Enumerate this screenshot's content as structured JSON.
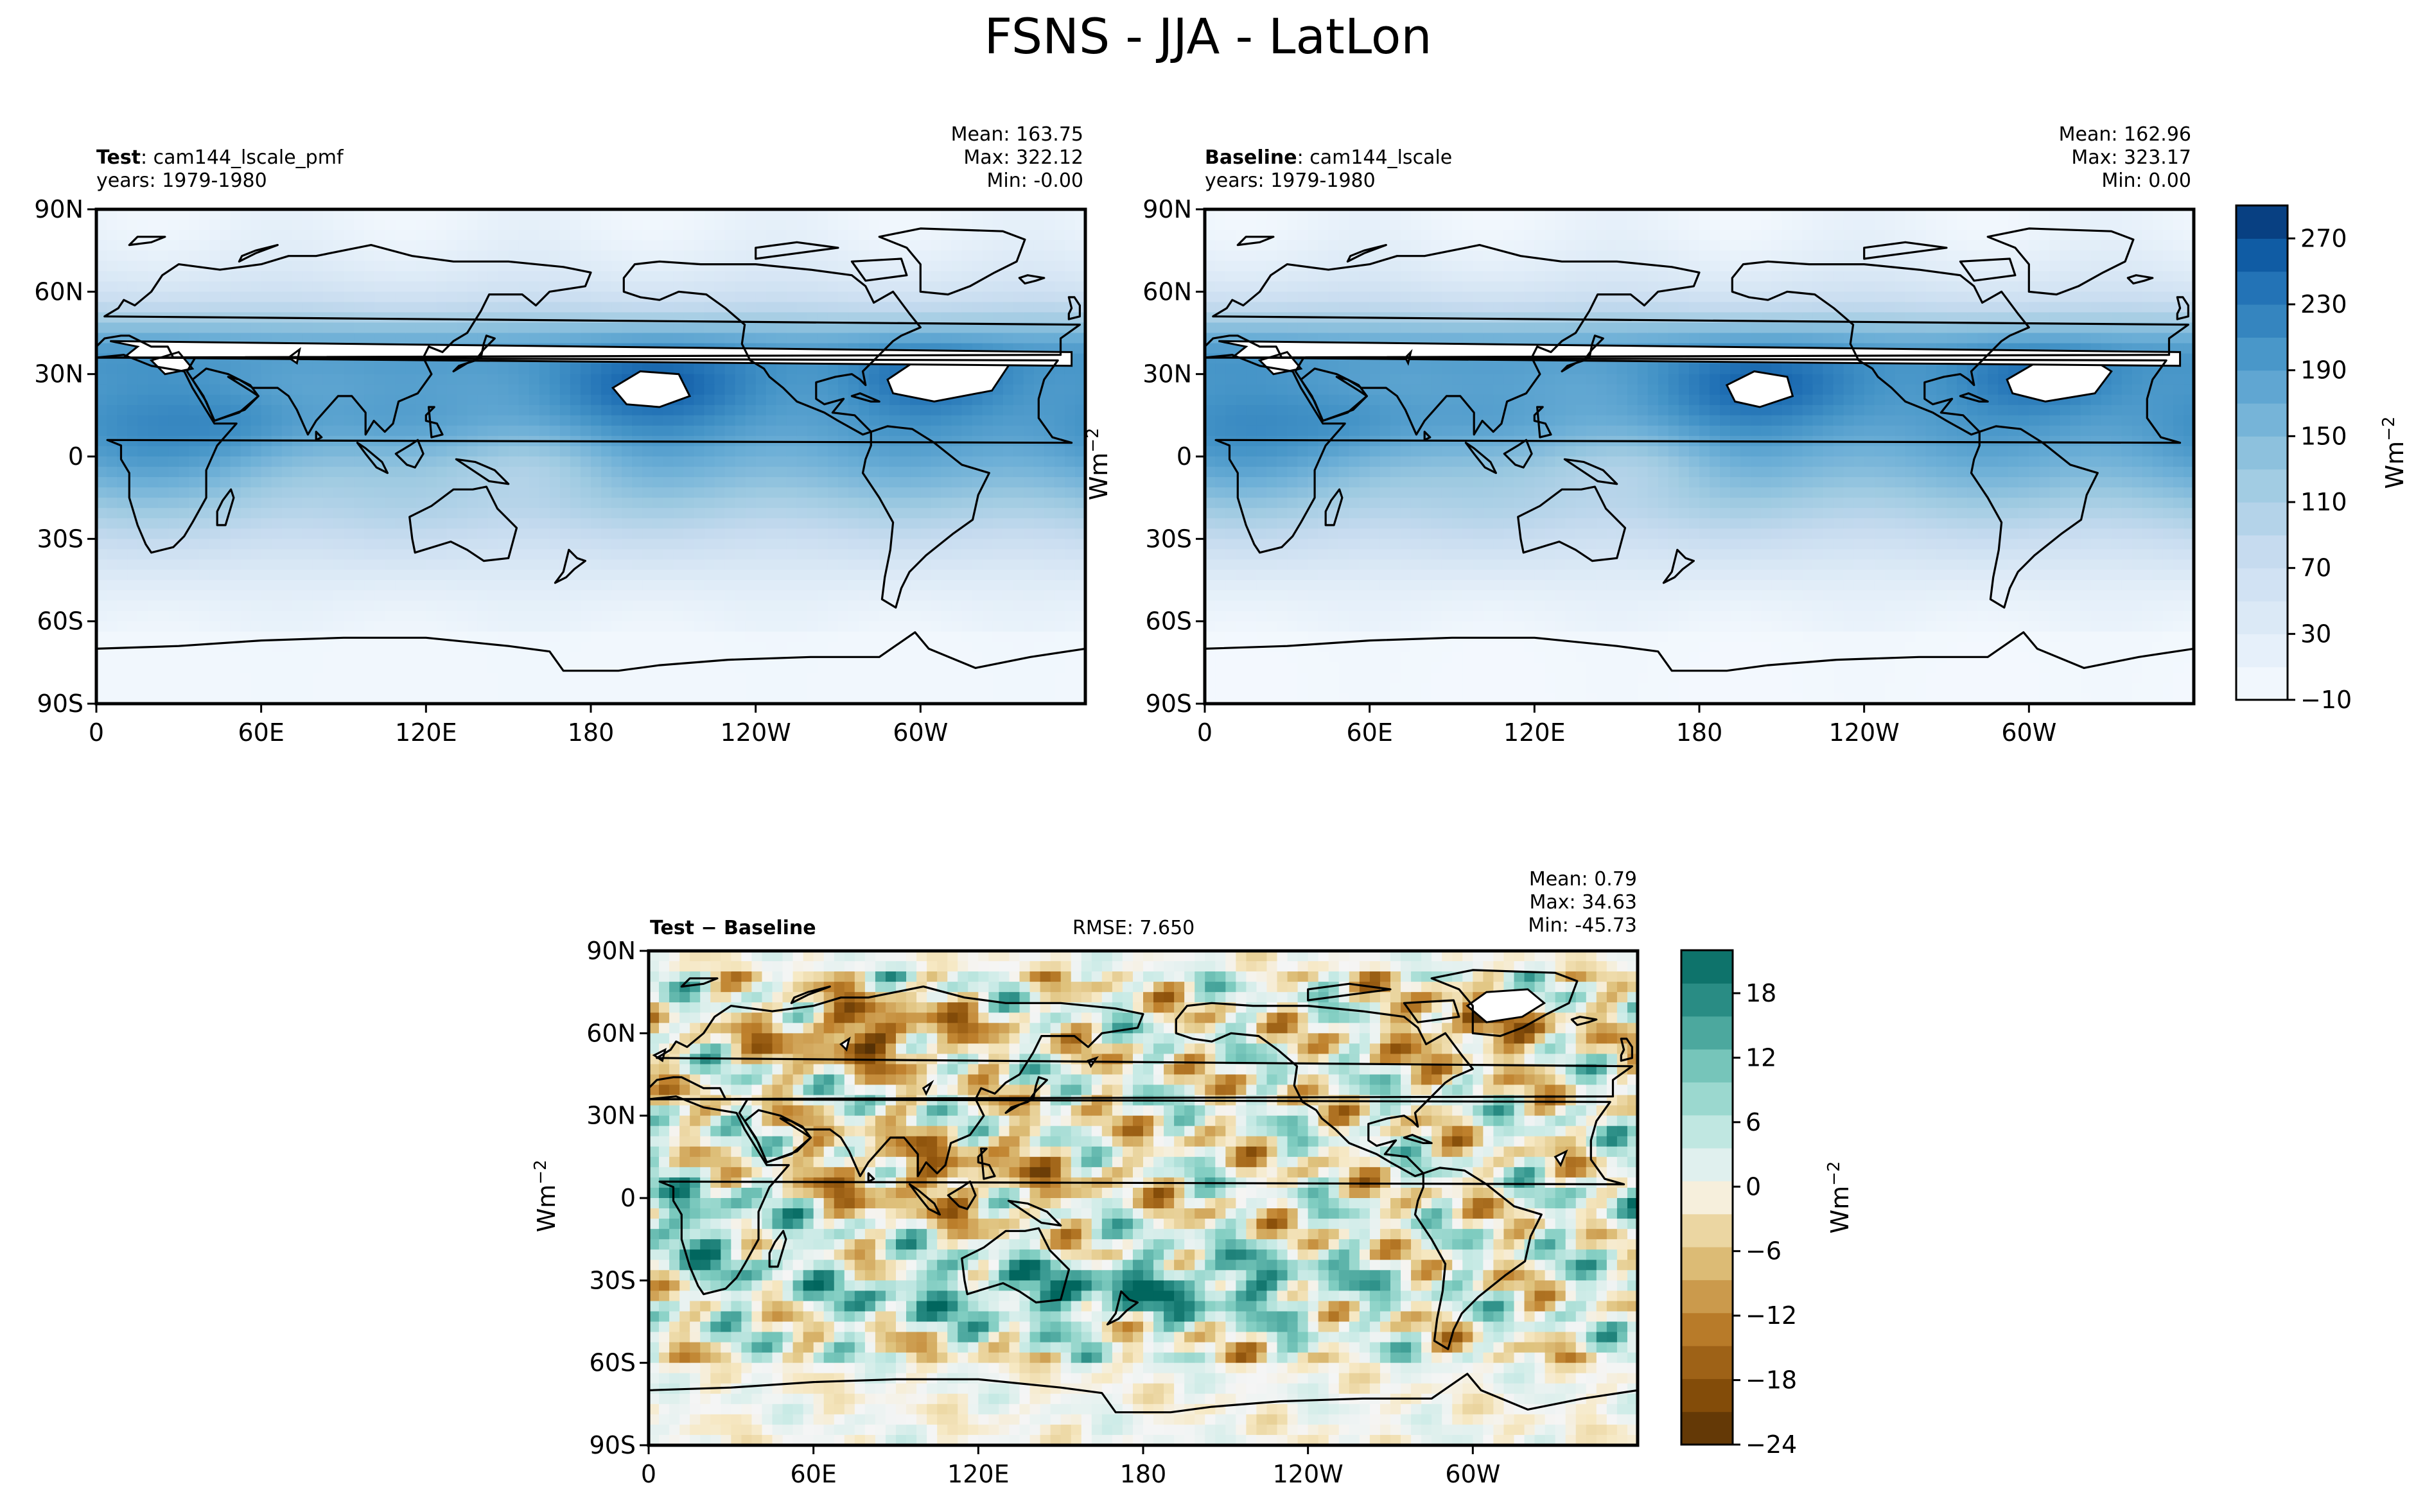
{
  "figure_title": "FSNS - JJA - LatLon",
  "chart_data": [
    {
      "type": "heatmap",
      "panel": "test",
      "label_bold": "Test",
      "label_rest": ": cam144_lscale_pmf",
      "years": "years: 1979-1980",
      "stats": {
        "mean": "Mean: 163.75",
        "max": "Max: 322.12",
        "min": "Min: -0.00"
      },
      "x_ticks": [
        "0",
        "60E",
        "120E",
        "180",
        "120W",
        "60W"
      ],
      "x_tick_values": [
        0,
        60,
        120,
        180,
        240,
        300
      ],
      "y_ticks": [
        "90N",
        "60N",
        "30N",
        "0",
        "30S",
        "60S",
        "90S"
      ],
      "y_tick_values": [
        90,
        60,
        30,
        0,
        -30,
        -60,
        -90
      ],
      "xlim": [
        0,
        360
      ],
      "ylim": [
        -90,
        90
      ],
      "colormap": "blues"
    },
    {
      "type": "heatmap",
      "panel": "baseline",
      "label_bold": "Baseline",
      "label_rest": ": cam144_lscale",
      "years": "years: 1979-1980",
      "stats": {
        "mean": "Mean: 162.96",
        "max": "Max: 323.17",
        "min": "Min:  0.00"
      },
      "x_ticks": [
        "0",
        "60E",
        "120E",
        "180",
        "120W",
        "60W"
      ],
      "x_tick_values": [
        0,
        60,
        120,
        180,
        240,
        300
      ],
      "y_ticks": [
        "90N",
        "60N",
        "30N",
        "0",
        "30S",
        "60S",
        "90S"
      ],
      "y_tick_values": [
        90,
        60,
        30,
        0,
        -30,
        -60,
        -90
      ],
      "xlim": [
        0,
        360
      ],
      "ylim": [
        -90,
        90
      ],
      "colormap": "blues",
      "colorbar": {
        "label": "Wm",
        "label_sup": "−2",
        "ticks": [
          "−10",
          "30",
          "70",
          "110",
          "150",
          "190",
          "230",
          "270"
        ],
        "tick_values": [
          -10,
          30,
          70,
          110,
          150,
          190,
          230,
          270
        ],
        "range": [
          -10,
          290
        ]
      }
    },
    {
      "type": "heatmap",
      "panel": "difference",
      "label_bold": "Test − Baseline",
      "rmse": "RMSE: 7.650",
      "stats": {
        "mean": "Mean:  0.79",
        "max": "Max: 34.63",
        "min": "Min: -45.73"
      },
      "x_ticks": [
        "0",
        "60E",
        "120E",
        "180",
        "120W",
        "60W"
      ],
      "x_tick_values": [
        0,
        60,
        120,
        180,
        240,
        300
      ],
      "y_ticks": [
        "90N",
        "60N",
        "30N",
        "0",
        "30S",
        "60S",
        "90S"
      ],
      "y_tick_values": [
        90,
        60,
        30,
        0,
        -30,
        -60,
        -90
      ],
      "xlim": [
        0,
        360
      ],
      "ylim": [
        -90,
        90
      ],
      "colormap": "brown-white-teal",
      "colorbar": {
        "label": "Wm",
        "label_sup": "−2",
        "ticks": [
          "−24",
          "−18",
          "−12",
          "−6",
          "0",
          "6",
          "12",
          "18"
        ],
        "tick_values": [
          -24,
          -18,
          -12,
          -6,
          0,
          6,
          12,
          18
        ],
        "range": [
          -24,
          22
        ]
      }
    }
  ],
  "left_ylabel": {
    "text": "Wm",
    "sup": "−2"
  }
}
